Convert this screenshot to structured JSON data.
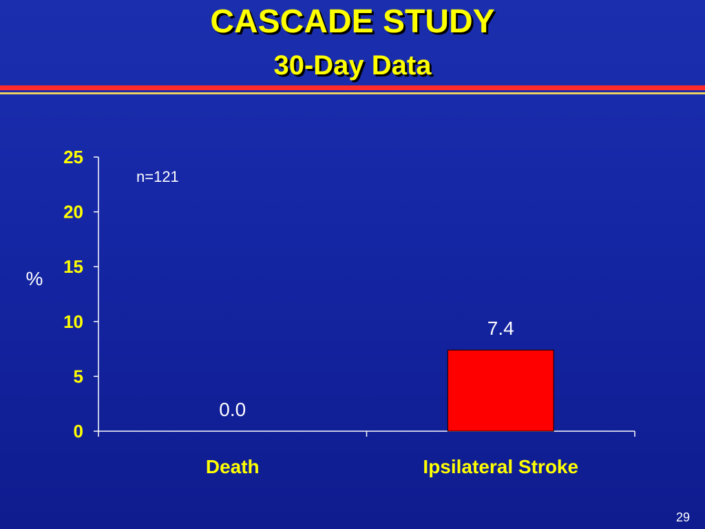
{
  "slide": {
    "title": "CASCADE STUDY",
    "subtitle": "30-Day Data",
    "page_number": "29",
    "colors": {
      "title": "#ffff00",
      "rule_red": "#ff2a2a",
      "rule_gold": "#f0d060",
      "bar": "#ff0000",
      "axis": "#ffffff",
      "text": "#ffffff",
      "category_text": "#ffff00"
    }
  },
  "chart_data": {
    "type": "bar",
    "categories": [
      "Death",
      "Ipsilateral Stroke"
    ],
    "values": [
      0.0,
      7.4
    ],
    "value_labels": [
      "0.0",
      "7.4"
    ],
    "ylabel": "%",
    "ylim": [
      0,
      25
    ],
    "yticks": [
      0,
      5,
      10,
      15,
      20,
      25
    ],
    "annotation": "n=121",
    "grid": false,
    "legend": "none"
  }
}
